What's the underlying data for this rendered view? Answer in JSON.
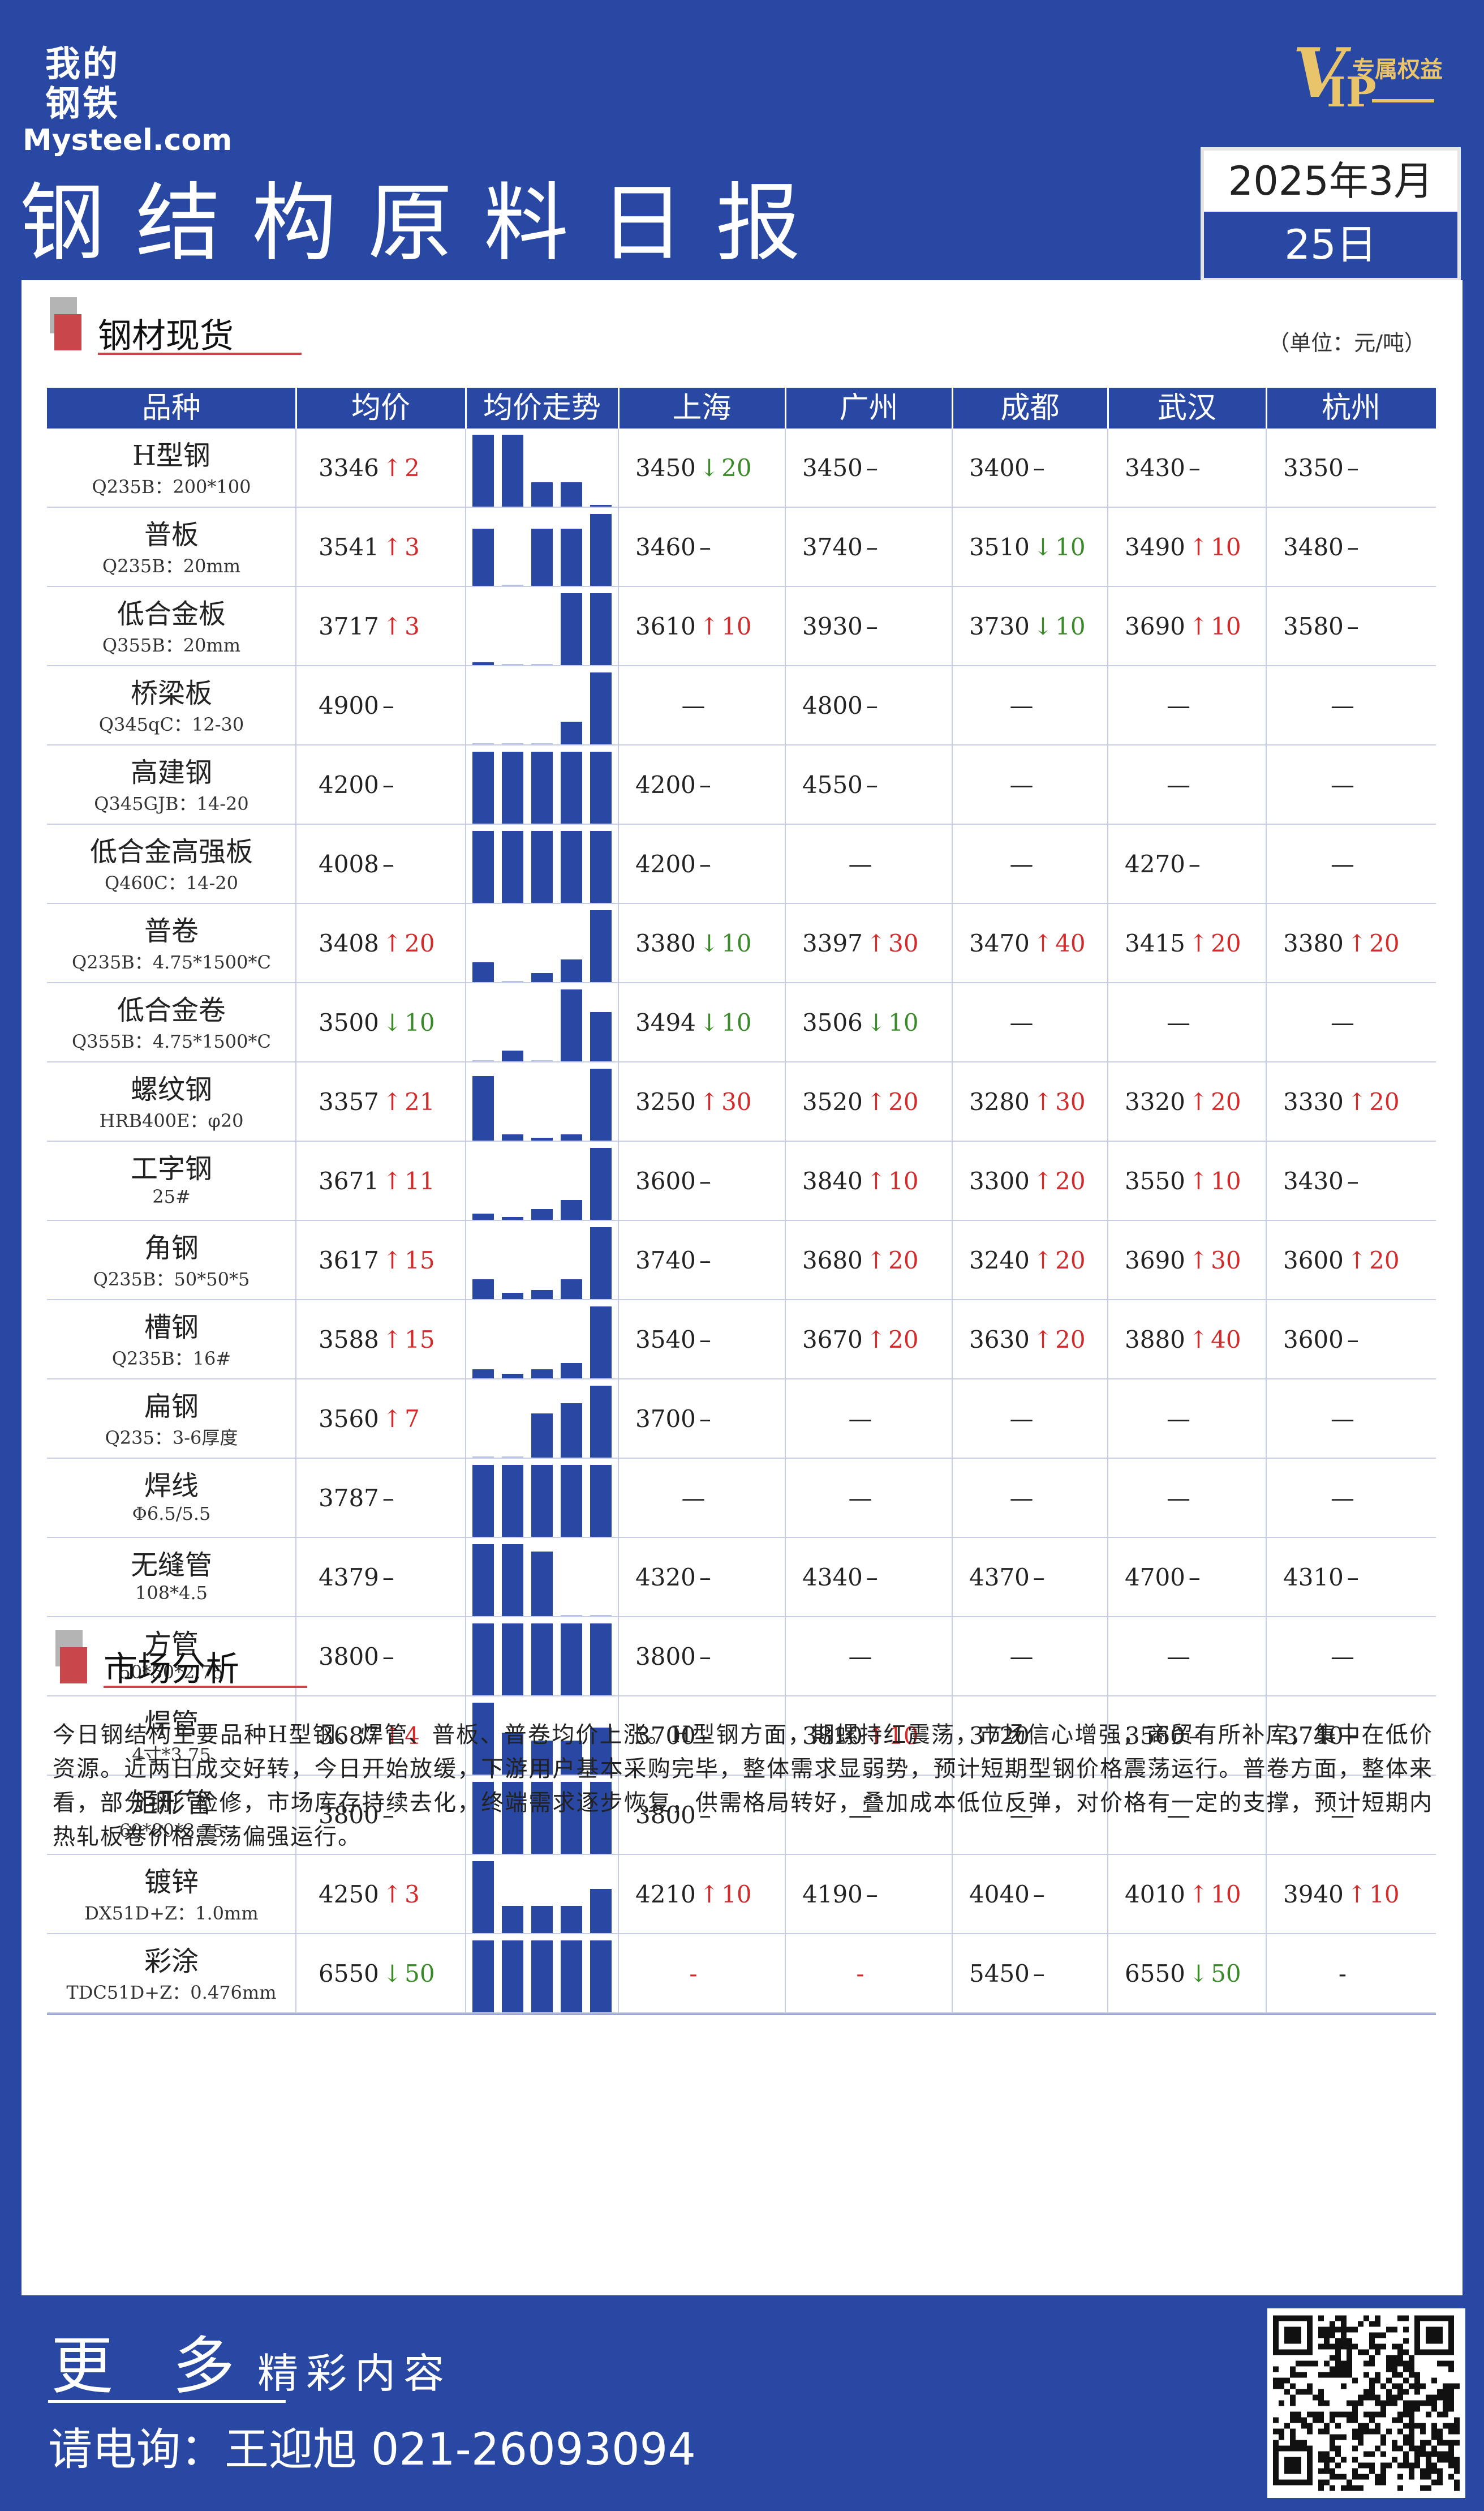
{
  "brand": {
    "cn": "我的钢铁",
    "en": "Mysteel.com"
  },
  "vip": {
    "v": "V",
    "ip": "IP",
    "sub": "专属权益"
  },
  "title": "钢结构原料日报",
  "date": {
    "line1": "2025年3月",
    "line2": "25日"
  },
  "section1": "钢材现货",
  "unit": "（单位：元/吨）",
  "columns": [
    "品种",
    "均价",
    "均价走势",
    "上海",
    "广州",
    "成都",
    "武汉",
    "杭州"
  ],
  "rows": [
    {
      "name": "H型钢",
      "spec": "Q235B：200*100",
      "avg": {
        "v": "3346",
        "d": "up",
        "c": "2"
      },
      "trend": [
        0.95,
        0.95,
        0.32,
        0.32,
        0.02
      ],
      "cities": [
        {
          "v": "3450",
          "d": "down",
          "c": "20"
        },
        {
          "v": "3450",
          "d": "none",
          "c": ""
        },
        {
          "v": "3400",
          "d": "none",
          "c": ""
        },
        {
          "v": "3430",
          "d": "none",
          "c": ""
        },
        {
          "v": "3350",
          "d": "none",
          "c": ""
        }
      ]
    },
    {
      "name": "普板",
      "spec": "Q235B：20mm",
      "avg": {
        "v": "3541",
        "d": "up",
        "c": "3"
      },
      "trend": [
        0.75,
        0.0,
        0.75,
        0.75,
        0.95
      ],
      "cities": [
        {
          "v": "3460",
          "d": "none",
          "c": ""
        },
        {
          "v": "3740",
          "d": "none",
          "c": ""
        },
        {
          "v": "3510",
          "d": "down",
          "c": "10"
        },
        {
          "v": "3490",
          "d": "up",
          "c": "10"
        },
        {
          "v": "3480",
          "d": "none",
          "c": ""
        }
      ]
    },
    {
      "name": "低合金板",
      "spec": "Q355B：20mm",
      "avg": {
        "v": "3717",
        "d": "up",
        "c": "3"
      },
      "trend": [
        0.04,
        0.0,
        0.0,
        0.95,
        0.95
      ],
      "cities": [
        {
          "v": "3610",
          "d": "up",
          "c": "10"
        },
        {
          "v": "3930",
          "d": "none",
          "c": ""
        },
        {
          "v": "3730",
          "d": "down",
          "c": "10"
        },
        {
          "v": "3690",
          "d": "up",
          "c": "10"
        },
        {
          "v": "3580",
          "d": "none",
          "c": ""
        }
      ]
    },
    {
      "name": "桥梁板",
      "spec": "Q345qC：12-30",
      "avg": {
        "v": "4900",
        "d": "none",
        "c": ""
      },
      "trend": [
        0.0,
        0.0,
        0.0,
        0.3,
        0.95
      ],
      "cities": [
        {
          "v": "—",
          "d": "blank",
          "c": ""
        },
        {
          "v": "4800",
          "d": "none",
          "c": ""
        },
        {
          "v": "—",
          "d": "blank",
          "c": ""
        },
        {
          "v": "—",
          "d": "blank",
          "c": ""
        },
        {
          "v": "—",
          "d": "blank",
          "c": ""
        }
      ]
    },
    {
      "name": "高建钢",
      "spec": "Q345GJB：14-20",
      "avg": {
        "v": "4200",
        "d": "none",
        "c": ""
      },
      "trend": [
        0.95,
        0.95,
        0.95,
        0.95,
        0.95
      ],
      "cities": [
        {
          "v": "4200",
          "d": "none",
          "c": ""
        },
        {
          "v": "4550",
          "d": "none",
          "c": ""
        },
        {
          "v": "—",
          "d": "blank",
          "c": ""
        },
        {
          "v": "—",
          "d": "blank",
          "c": ""
        },
        {
          "v": "—",
          "d": "blank",
          "c": ""
        }
      ]
    },
    {
      "name": "低合金高强板",
      "spec": "Q460C：14-20",
      "avg": {
        "v": "4008",
        "d": "none",
        "c": ""
      },
      "trend": [
        0.95,
        0.95,
        0.95,
        0.95,
        0.95
      ],
      "cities": [
        {
          "v": "4200",
          "d": "none",
          "c": ""
        },
        {
          "v": "—",
          "d": "blank",
          "c": ""
        },
        {
          "v": "—",
          "d": "blank",
          "c": ""
        },
        {
          "v": "4270",
          "d": "none",
          "c": ""
        },
        {
          "v": "—",
          "d": "blank",
          "c": ""
        }
      ]
    },
    {
      "name": "普卷",
      "spec": "Q235B：4.75*1500*C",
      "avg": {
        "v": "3408",
        "d": "up",
        "c": "20"
      },
      "trend": [
        0.26,
        0.0,
        0.12,
        0.3,
        0.95
      ],
      "cities": [
        {
          "v": "3380",
          "d": "down",
          "c": "10"
        },
        {
          "v": "3397",
          "d": "up",
          "c": "30"
        },
        {
          "v": "3470",
          "d": "up",
          "c": "40"
        },
        {
          "v": "3415",
          "d": "up",
          "c": "20"
        },
        {
          "v": "3380",
          "d": "up",
          "c": "20"
        }
      ]
    },
    {
      "name": "低合金卷",
      "spec": "Q355B：4.75*1500*C",
      "avg": {
        "v": "3500",
        "d": "down",
        "c": "10"
      },
      "trend": [
        0.0,
        0.14,
        0.0,
        0.95,
        0.65
      ],
      "cities": [
        {
          "v": "3494",
          "d": "down",
          "c": "10"
        },
        {
          "v": "3506",
          "d": "down",
          "c": "10"
        },
        {
          "v": "—",
          "d": "blank",
          "c": ""
        },
        {
          "v": "—",
          "d": "blank",
          "c": ""
        },
        {
          "v": "—",
          "d": "blank",
          "c": ""
        }
      ]
    },
    {
      "name": "螺纹钢",
      "spec": "HRB400E：φ20",
      "avg": {
        "v": "3357",
        "d": "up",
        "c": "21"
      },
      "trend": [
        0.85,
        0.08,
        0.04,
        0.08,
        0.95
      ],
      "cities": [
        {
          "v": "3250",
          "d": "up",
          "c": "30"
        },
        {
          "v": "3520",
          "d": "up",
          "c": "20"
        },
        {
          "v": "3280",
          "d": "up",
          "c": "30"
        },
        {
          "v": "3320",
          "d": "up",
          "c": "20"
        },
        {
          "v": "3330",
          "d": "up",
          "c": "20"
        }
      ]
    },
    {
      "name": "工字钢",
      "spec": "25#",
      "avg": {
        "v": "3671",
        "d": "up",
        "c": "11"
      },
      "trend": [
        0.08,
        0.04,
        0.14,
        0.26,
        0.95
      ],
      "cities": [
        {
          "v": "3600",
          "d": "none",
          "c": ""
        },
        {
          "v": "3840",
          "d": "up",
          "c": "10"
        },
        {
          "v": "3300",
          "d": "up",
          "c": "20"
        },
        {
          "v": "3550",
          "d": "up",
          "c": "10"
        },
        {
          "v": "3430",
          "d": "none",
          "c": ""
        }
      ]
    },
    {
      "name": "角钢",
      "spec": "Q235B：50*50*5",
      "avg": {
        "v": "3617",
        "d": "up",
        "c": "15"
      },
      "trend": [
        0.26,
        0.08,
        0.12,
        0.26,
        0.95
      ],
      "cities": [
        {
          "v": "3740",
          "d": "none",
          "c": ""
        },
        {
          "v": "3680",
          "d": "up",
          "c": "20"
        },
        {
          "v": "3240",
          "d": "up",
          "c": "20"
        },
        {
          "v": "3690",
          "d": "up",
          "c": "30"
        },
        {
          "v": "3600",
          "d": "up",
          "c": "20"
        }
      ]
    },
    {
      "name": "槽钢",
      "spec": "Q235B：16#",
      "avg": {
        "v": "3588",
        "d": "up",
        "c": "15"
      },
      "trend": [
        0.12,
        0.06,
        0.12,
        0.2,
        0.95
      ],
      "cities": [
        {
          "v": "3540",
          "d": "none",
          "c": ""
        },
        {
          "v": "3670",
          "d": "up",
          "c": "20"
        },
        {
          "v": "3630",
          "d": "up",
          "c": "20"
        },
        {
          "v": "3880",
          "d": "up",
          "c": "40"
        },
        {
          "v": "3600",
          "d": "none",
          "c": ""
        }
      ]
    },
    {
      "name": "扁钢",
      "spec": "Q235：3-6厚度",
      "avg": {
        "v": "3560",
        "d": "up",
        "c": "7"
      },
      "trend": [
        0.0,
        0.0,
        0.58,
        0.72,
        0.95
      ],
      "cities": [
        {
          "v": "3700",
          "d": "none",
          "c": ""
        },
        {
          "v": "—",
          "d": "blank",
          "c": ""
        },
        {
          "v": "—",
          "d": "blank",
          "c": ""
        },
        {
          "v": "—",
          "d": "blank",
          "c": ""
        },
        {
          "v": "—",
          "d": "blank",
          "c": ""
        }
      ]
    },
    {
      "name": "焊线",
      "spec": "Φ6.5/5.5",
      "avg": {
        "v": "3787",
        "d": "none",
        "c": ""
      },
      "trend": [
        0.95,
        0.95,
        0.95,
        0.95,
        0.95
      ],
      "cities": [
        {
          "v": "—",
          "d": "blank",
          "c": ""
        },
        {
          "v": "—",
          "d": "blank",
          "c": ""
        },
        {
          "v": "—",
          "d": "blank",
          "c": ""
        },
        {
          "v": "—",
          "d": "blank",
          "c": ""
        },
        {
          "v": "—",
          "d": "blank",
          "c": ""
        }
      ]
    },
    {
      "name": "无缝管",
      "spec": "108*4.5",
      "avg": {
        "v": "4379",
        "d": "none",
        "c": ""
      },
      "trend": [
        0.95,
        0.95,
        0.85,
        0.0,
        0.0
      ],
      "cities": [
        {
          "v": "4320",
          "d": "none",
          "c": ""
        },
        {
          "v": "4340",
          "d": "none",
          "c": ""
        },
        {
          "v": "4370",
          "d": "none",
          "c": ""
        },
        {
          "v": "4700",
          "d": "none",
          "c": ""
        },
        {
          "v": "4310",
          "d": "none",
          "c": ""
        }
      ]
    },
    {
      "name": "方管",
      "spec": "50*50*2.75",
      "avg": {
        "v": "3800",
        "d": "none",
        "c": ""
      },
      "trend": [
        0.95,
        0.95,
        0.95,
        0.95,
        0.95
      ],
      "cities": [
        {
          "v": "3800",
          "d": "none",
          "c": ""
        },
        {
          "v": "—",
          "d": "blank",
          "c": ""
        },
        {
          "v": "—",
          "d": "blank",
          "c": ""
        },
        {
          "v": "—",
          "d": "blank",
          "c": ""
        },
        {
          "v": "—",
          "d": "blank",
          "c": ""
        }
      ]
    },
    {
      "name": "焊管",
      "spec": "4寸*3.75",
      "avg": {
        "v": "3687",
        "d": "up",
        "c": "4"
      },
      "trend": [
        0.95,
        0.55,
        0.45,
        0.45,
        0.62
      ],
      "cities": [
        {
          "v": "3700",
          "d": "none",
          "c": ""
        },
        {
          "v": "3810",
          "d": "up",
          "c": "10"
        },
        {
          "v": "3720",
          "d": "none",
          "c": ""
        },
        {
          "v": "3560",
          "d": "none",
          "c": ""
        },
        {
          "v": "3740",
          "d": "none",
          "c": ""
        }
      ]
    },
    {
      "name": "矩形管",
      "spec": "60*80*3.75",
      "avg": {
        "v": "3800",
        "d": "none",
        "c": ""
      },
      "trend": [
        0.95,
        0.95,
        0.95,
        0.95,
        0.95
      ],
      "cities": [
        {
          "v": "3800",
          "d": "none",
          "c": ""
        },
        {
          "v": "—",
          "d": "blank",
          "c": ""
        },
        {
          "v": "—",
          "d": "blank",
          "c": ""
        },
        {
          "v": "—",
          "d": "blank",
          "c": ""
        },
        {
          "v": "—",
          "d": "blank",
          "c": ""
        }
      ]
    },
    {
      "name": "镀锌",
      "spec": "DX51D+Z：1.0mm",
      "avg": {
        "v": "4250",
        "d": "up",
        "c": "3"
      },
      "trend": [
        0.95,
        0.36,
        0.36,
        0.36,
        0.58
      ],
      "cities": [
        {
          "v": "4210",
          "d": "up",
          "c": "10"
        },
        {
          "v": "4190",
          "d": "none",
          "c": ""
        },
        {
          "v": "4040",
          "d": "none",
          "c": ""
        },
        {
          "v": "4010",
          "d": "up",
          "c": "10"
        },
        {
          "v": "3940",
          "d": "up",
          "c": "10"
        }
      ]
    },
    {
      "name": "彩涂",
      "spec": "TDC51D+Z：0.476mm",
      "avg": {
        "v": "6550",
        "d": "down",
        "c": "50"
      },
      "trend": [
        0.95,
        0.95,
        0.95,
        0.95,
        0.95
      ],
      "cities": [
        {
          "v": "-",
          "d": "red",
          "c": ""
        },
        {
          "v": "-",
          "d": "red",
          "c": ""
        },
        {
          "v": "5450",
          "d": "none",
          "c": ""
        },
        {
          "v": "6550",
          "d": "down",
          "c": "50"
        },
        {
          "v": "-",
          "d": "blank",
          "c": ""
        }
      ]
    }
  ],
  "section2": "市场分析",
  "analysis": "今日钢结构主要品种H型钢、焊管、普板、普卷均价上涨。H型钢方面，期螺持红震荡，市场信心增强，商贸有所补库，集中在低价资源。近两日成交好转，今日开始放缓，下游用户基本采购完毕，整体需求显弱势，预计短期型钢价格震荡运行。普卷方面，整体来看，部分钢厂检修，市场库存持续去化，终端需求逐步恢复，供需格局转好，叠加成本低位反弹，对价格有一定的支撑，预计短期内热轧板卷价格震荡偏强运行。",
  "footer": {
    "more_big": "更 多",
    "more_small": "精彩内容",
    "phone": "请电询：王迎旭  021-26093094"
  },
  "colors": {
    "brand": "#2848a3",
    "up": "#d22b2b",
    "down": "#3a8a2a",
    "accent": "#c9474a"
  }
}
